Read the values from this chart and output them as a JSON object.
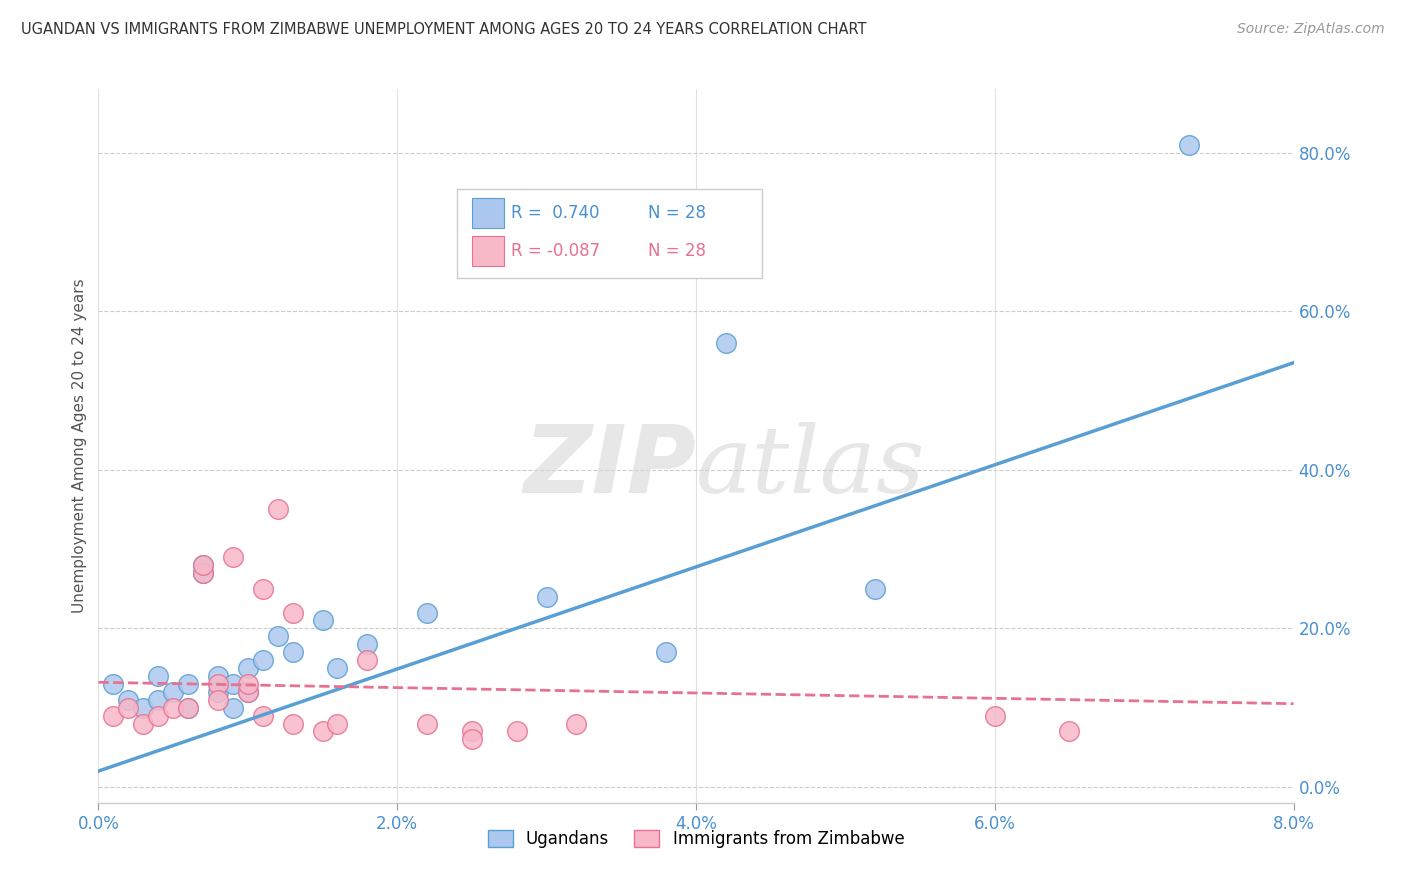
{
  "title": "UGANDAN VS IMMIGRANTS FROM ZIMBABWE UNEMPLOYMENT AMONG AGES 20 TO 24 YEARS CORRELATION CHART",
  "source": "Source: ZipAtlas.com",
  "ylabel": "Unemployment Among Ages 20 to 24 years",
  "xlim": [
    0.0,
    0.08
  ],
  "ylim": [
    -0.02,
    0.88
  ],
  "xticks": [
    0.0,
    0.02,
    0.04,
    0.06,
    0.08
  ],
  "xtick_labels": [
    "0.0%",
    "2.0%",
    "4.0%",
    "6.0%",
    "8.0%"
  ],
  "yticks_right": [
    0.0,
    0.2,
    0.4,
    0.6,
    0.8
  ],
  "ytick_labels_right": [
    "0.0%",
    "20.0%",
    "40.0%",
    "60.0%",
    "80.0%"
  ],
  "R_ugandan": 0.74,
  "R_zimbabwe": -0.087,
  "N_ugandan": 28,
  "N_zimbabwe": 28,
  "ugandan_color": "#adc8ee",
  "zimbabwe_color": "#f7b8c8",
  "ugandan_line_color": "#5a9fd4",
  "zimbabwe_line_color": "#e87090",
  "legend_label_ugandan": "Ugandans",
  "legend_label_zimbabwe": "Immigrants from Zimbabwe",
  "watermark_zip": "ZIP",
  "watermark_atlas": "atlas",
  "ugandan_x": [
    0.001,
    0.002,
    0.003,
    0.004,
    0.004,
    0.005,
    0.006,
    0.006,
    0.007,
    0.007,
    0.008,
    0.008,
    0.009,
    0.009,
    0.01,
    0.01,
    0.011,
    0.012,
    0.013,
    0.015,
    0.016,
    0.018,
    0.022,
    0.03,
    0.038,
    0.042,
    0.052,
    0.073
  ],
  "ugandan_y": [
    0.13,
    0.11,
    0.1,
    0.14,
    0.11,
    0.12,
    0.13,
    0.1,
    0.27,
    0.28,
    0.14,
    0.12,
    0.13,
    0.1,
    0.15,
    0.12,
    0.16,
    0.19,
    0.17,
    0.21,
    0.15,
    0.18,
    0.22,
    0.24,
    0.17,
    0.56,
    0.25,
    0.81
  ],
  "zimbabwe_x": [
    0.001,
    0.002,
    0.003,
    0.004,
    0.005,
    0.006,
    0.007,
    0.007,
    0.008,
    0.008,
    0.009,
    0.01,
    0.01,
    0.011,
    0.011,
    0.012,
    0.013,
    0.013,
    0.015,
    0.016,
    0.018,
    0.022,
    0.025,
    0.025,
    0.028,
    0.032,
    0.06,
    0.065
  ],
  "zimbabwe_y": [
    0.09,
    0.1,
    0.08,
    0.09,
    0.1,
    0.1,
    0.27,
    0.28,
    0.13,
    0.11,
    0.29,
    0.12,
    0.13,
    0.25,
    0.09,
    0.35,
    0.08,
    0.22,
    0.07,
    0.08,
    0.16,
    0.08,
    0.07,
    0.06,
    0.07,
    0.08,
    0.09,
    0.07
  ],
  "blue_line_x": [
    0.0,
    0.08
  ],
  "blue_line_y": [
    0.02,
    0.535
  ],
  "pink_line_x": [
    0.0,
    0.08
  ],
  "pink_line_y": [
    0.132,
    0.105
  ]
}
